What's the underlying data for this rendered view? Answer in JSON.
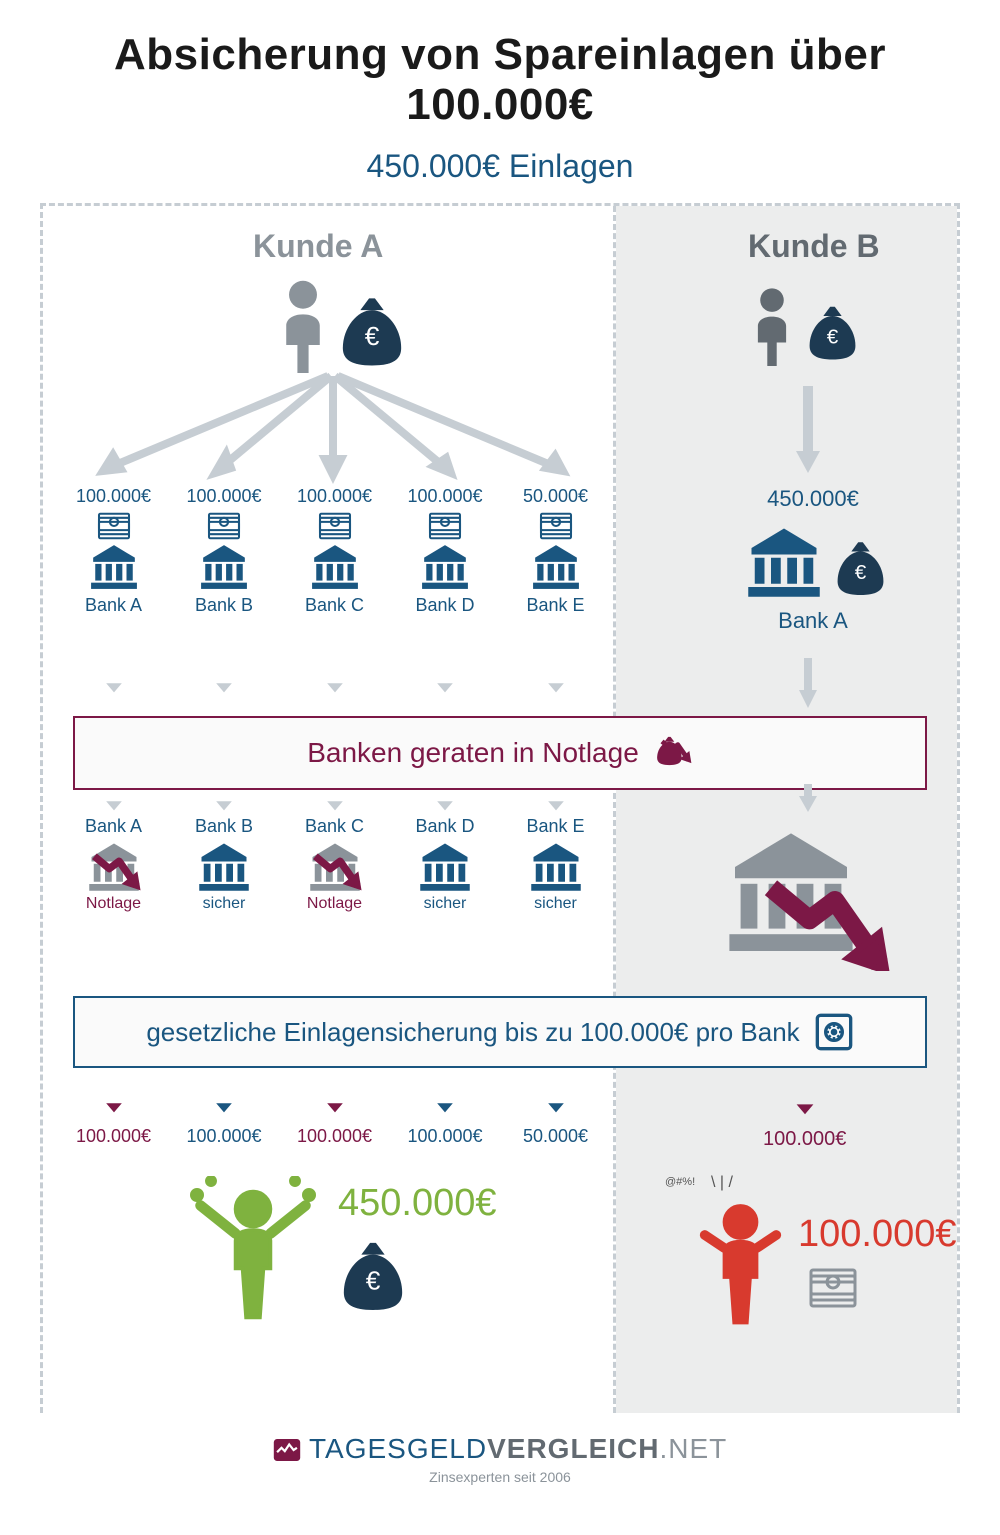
{
  "title": "Absicherung von Spareinlagen über 100.000€",
  "subtitle": "450.000€ Einlagen",
  "colA": "Kunde A",
  "colB": "Kunde B",
  "banksA": [
    {
      "amount": "100.000€",
      "name": "Bank A"
    },
    {
      "amount": "100.000€",
      "name": "Bank B"
    },
    {
      "amount": "100.000€",
      "name": "Bank C"
    },
    {
      "amount": "100.000€",
      "name": "Bank D"
    },
    {
      "amount": "50.000€",
      "name": "Bank E"
    }
  ],
  "bankB": {
    "amount": "450.000€",
    "name": "Bank A"
  },
  "crisis": "Banken geraten in Notlage",
  "statusA": [
    {
      "name": "Bank A",
      "status": "Notlage",
      "danger": true
    },
    {
      "name": "Bank B",
      "status": "sicher",
      "danger": false
    },
    {
      "name": "Bank C",
      "status": "Notlage",
      "danger": true
    },
    {
      "name": "Bank D",
      "status": "sicher",
      "danger": false
    },
    {
      "name": "Bank E",
      "status": "sicher",
      "danger": false
    }
  ],
  "guarantee": "gesetzliche Einlagensicherung bis zu 100.000€ pro Bank",
  "payoutsA": [
    {
      "amount": "100.000€",
      "danger": true
    },
    {
      "amount": "100.000€",
      "danger": false
    },
    {
      "amount": "100.000€",
      "danger": true
    },
    {
      "amount": "100.000€",
      "danger": false
    },
    {
      "amount": "50.000€",
      "danger": false
    }
  ],
  "payoutB": {
    "amount": "100.000€",
    "danger": true
  },
  "resultA": "450.000€",
  "resultB": "100.000€",
  "footer": {
    "brand1": "TAGESGELD",
    "brand2": "VERGLEICH",
    "brand3": ".NET",
    "tag": "Zinsexperten seit 2006"
  },
  "colors": {
    "primary": "#1a5680",
    "danger": "#7c1846",
    "muted": "#8b939a",
    "arrowMuted": "#c6cdd3",
    "green": "#7fb23f",
    "red": "#d83a2e",
    "darkBag": "#1d3a52"
  }
}
